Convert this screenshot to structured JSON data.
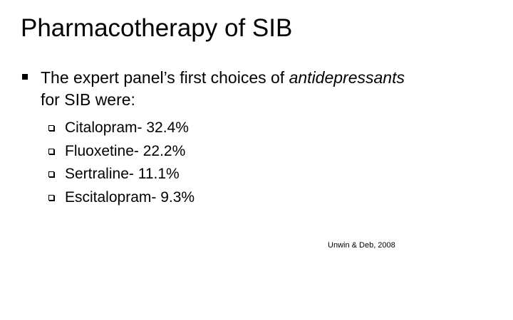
{
  "title": "Pharmacotherapy of SIB",
  "bullet": {
    "text_before": "The expert panel’s first choices of",
    "emphasis": "antidepressants",
    "text_after": "for SIB were:"
  },
  "items": [
    "Citalopram- 32.4%",
    "Fluoxetine- 22.2%",
    "Sertraline- 11.1%",
    "Escitalopram- 9.3%"
  ],
  "citation": "Unwin & Deb, 2008"
}
